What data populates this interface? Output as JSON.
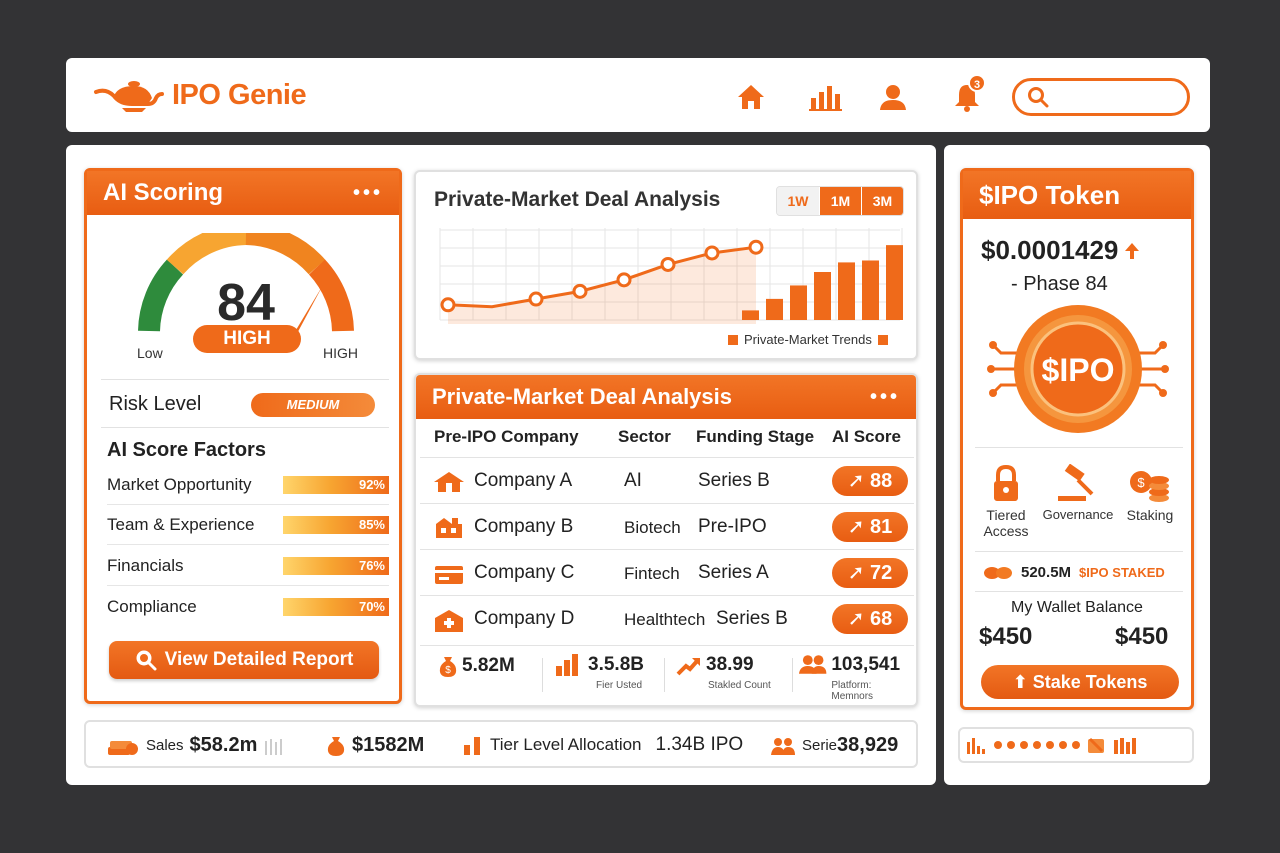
{
  "app": {
    "name": "IPO Genie",
    "notification_count": "3",
    "search_placeholder": ""
  },
  "colors": {
    "accent": "#ef6a1a",
    "accent_light": "#f7a531",
    "green": "#2e8b3c",
    "background": "#333335"
  },
  "ai_scoring": {
    "title": "AI Scoring",
    "score": "84",
    "score_label": "HIGH",
    "gauge_low": "Low",
    "gauge_high": "HIGH",
    "risk_label": "Risk Level",
    "risk_value": "MEDIUM",
    "factors_title": "AI Score Factors",
    "factors": [
      {
        "label": "Market Opportunity",
        "pct": "92%"
      },
      {
        "label": "Team & Experience",
        "pct": "85%"
      },
      {
        "label": "Financials",
        "pct": "76%"
      },
      {
        "label": "Compliance",
        "pct": "70%"
      }
    ],
    "report_button": "View Detailed Report"
  },
  "deal_chart": {
    "title": "Private-Market Deal Analysis",
    "ranges": [
      "1W",
      "1M",
      "3M"
    ],
    "legend": "Private-Market Trends"
  },
  "chart_data": {
    "type": "line",
    "series": [
      {
        "values": [
          20,
          18,
          26,
          34,
          46,
          62,
          74,
          80
        ]
      },
      {
        "values": [
          10,
          22,
          36,
          50,
          60,
          62,
          78
        ]
      }
    ],
    "grid": true
  },
  "deal_table": {
    "title": "Private-Market Deal Analysis",
    "columns": [
      "Pre-IPO Company",
      "Sector",
      "Funding Stage",
      "AI Score"
    ],
    "rows": [
      {
        "company": "Company A",
        "sector": "AI",
        "stage": "Series B",
        "score": "88"
      },
      {
        "company": "Company B",
        "sector": "Biotech",
        "stage": "Pre-IPO",
        "score": "81"
      },
      {
        "company": "Company C",
        "sector": "Fintech",
        "stage": "Series A",
        "score": "72"
      },
      {
        "company": "Company D",
        "sector": "Healthtech",
        "stage": "Series B",
        "score": "68"
      }
    ],
    "stats": [
      {
        "value": "5.82M",
        "sub": ""
      },
      {
        "value": "3.5.8B",
        "sub": "Fier Usted"
      },
      {
        "value": "38.99",
        "sub": "Stakled Count"
      },
      {
        "value": "103,541",
        "sub": "Platform: Memnors"
      }
    ]
  },
  "bottom_bar": {
    "sales_label": "Sales",
    "sales_value": "$58.2m",
    "amount": "$1582M",
    "tier_label": "Tier Level Allocation",
    "tier_value": "1.34B IPO",
    "serie_label": "Serie",
    "serie_value": "38,929"
  },
  "token": {
    "title": "$IPO Token",
    "price": "$0.0001429",
    "phase": "- Phase 84",
    "coin_label": "$IPO",
    "features": [
      "Tiered Access",
      "Governance",
      "Staking"
    ],
    "staked_value": "520.5M",
    "staked_unit": "$IPO STAKED",
    "wallet_label": "My Wallet Balance",
    "wallet_a": "$450",
    "wallet_b": "$450",
    "stake_button": "Stake Tokens"
  }
}
